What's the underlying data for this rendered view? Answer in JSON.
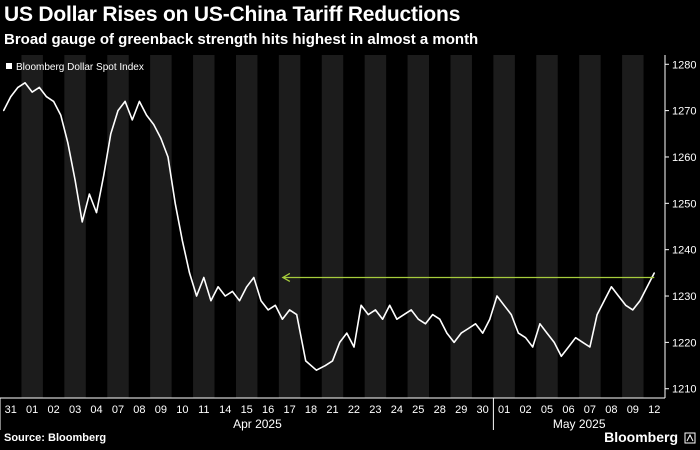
{
  "header": {
    "title": "US Dollar Rises on US-China Tariff Reductions",
    "subtitle": "Broad gauge of greenback strength hits highest in almost a month"
  },
  "footer": {
    "source": "Source: Bloomberg",
    "brand": "Bloomberg"
  },
  "colors": {
    "background": "#000000",
    "line": "#ffffff",
    "annotation_arrow": "#a6cc3c",
    "alt_band": "#1c1c1c",
    "axis_text": "#ffffff"
  },
  "chart_data": {
    "type": "line",
    "title": "US Dollar Rises on US-China Tariff Reductions",
    "subtitle": "Broad gauge of greenback strength hits highest in almost a month",
    "legend": {
      "placement": "top-left",
      "entries": [
        "Bloomberg Dollar Spot Index"
      ]
    },
    "series": [
      {
        "name": "Bloomberg Dollar Spot Index",
        "points": [
          [
            "31",
            1270
          ],
          [
            "31",
            1273
          ],
          [
            "31",
            1275
          ],
          [
            "01",
            1276
          ],
          [
            "01",
            1274
          ],
          [
            "01",
            1275
          ],
          [
            "02",
            1273
          ],
          [
            "02",
            1272
          ],
          [
            "02",
            1269
          ],
          [
            "03",
            1263
          ],
          [
            "03",
            1255
          ],
          [
            "03",
            1246
          ],
          [
            "04",
            1252
          ],
          [
            "04",
            1248
          ],
          [
            "04",
            1256
          ],
          [
            "07",
            1265
          ],
          [
            "07",
            1270
          ],
          [
            "07",
            1272
          ],
          [
            "08",
            1268
          ],
          [
            "08",
            1272
          ],
          [
            "08",
            1269
          ],
          [
            "09",
            1267
          ],
          [
            "09",
            1264
          ],
          [
            "09",
            1260
          ],
          [
            "10",
            1250
          ],
          [
            "10",
            1242
          ],
          [
            "10",
            1235
          ],
          [
            "11",
            1230
          ],
          [
            "11",
            1234
          ],
          [
            "11",
            1229
          ],
          [
            "14",
            1232
          ],
          [
            "14",
            1230
          ],
          [
            "14",
            1231
          ],
          [
            "15",
            1229
          ],
          [
            "15",
            1232
          ],
          [
            "15",
            1234
          ],
          [
            "16",
            1229
          ],
          [
            "16",
            1227
          ],
          [
            "16",
            1228
          ],
          [
            "17",
            1225
          ],
          [
            "17",
            1227
          ],
          [
            "17",
            1226
          ],
          [
            "18",
            1216
          ],
          [
            "18",
            1214
          ],
          [
            "21",
            1215
          ],
          [
            "21",
            1216
          ],
          [
            "21",
            1220
          ],
          [
            "22",
            1222
          ],
          [
            "22",
            1219
          ],
          [
            "22",
            1228
          ],
          [
            "23",
            1226
          ],
          [
            "23",
            1227
          ],
          [
            "23",
            1225
          ],
          [
            "24",
            1228
          ],
          [
            "24",
            1225
          ],
          [
            "24",
            1226
          ],
          [
            "25",
            1227
          ],
          [
            "25",
            1225
          ],
          [
            "25",
            1224
          ],
          [
            "28",
            1226
          ],
          [
            "28",
            1225
          ],
          [
            "28",
            1222
          ],
          [
            "29",
            1220
          ],
          [
            "29",
            1222
          ],
          [
            "29",
            1223
          ],
          [
            "30",
            1224
          ],
          [
            "30",
            1222
          ],
          [
            "30",
            1225
          ],
          [
            "01",
            1230
          ],
          [
            "01",
            1228
          ],
          [
            "01",
            1226
          ],
          [
            "02",
            1222
          ],
          [
            "02",
            1221
          ],
          [
            "02",
            1219
          ],
          [
            "05",
            1224
          ],
          [
            "05",
            1222
          ],
          [
            "05",
            1220
          ],
          [
            "06",
            1217
          ],
          [
            "06",
            1219
          ],
          [
            "06",
            1221
          ],
          [
            "07",
            1220
          ],
          [
            "07",
            1219
          ],
          [
            "07",
            1226
          ],
          [
            "08",
            1229
          ],
          [
            "08",
            1232
          ],
          [
            "08",
            1230
          ],
          [
            "09",
            1228
          ],
          [
            "09",
            1227
          ],
          [
            "09",
            1229
          ],
          [
            "12",
            1235
          ]
        ]
      }
    ],
    "x_tick_labels": [
      "31",
      "01",
      "02",
      "03",
      "04",
      "07",
      "08",
      "09",
      "10",
      "11",
      "14",
      "15",
      "16",
      "17",
      "18",
      "21",
      "22",
      "23",
      "24",
      "25",
      "28",
      "29",
      "30",
      "01",
      "02",
      "05",
      "06",
      "07",
      "08",
      "09",
      "12"
    ],
    "month_labels": [
      "Apr 2025",
      "May 2025"
    ],
    "ylim": [
      1208,
      1282
    ],
    "y_ticks": [
      1210,
      1220,
      1230,
      1240,
      1250,
      1260,
      1270,
      1280
    ],
    "annotation": {
      "type": "arrow",
      "y": 1234,
      "from_tick": "12",
      "to_tick": "17"
    },
    "grid": false,
    "alternating_bands": true
  }
}
